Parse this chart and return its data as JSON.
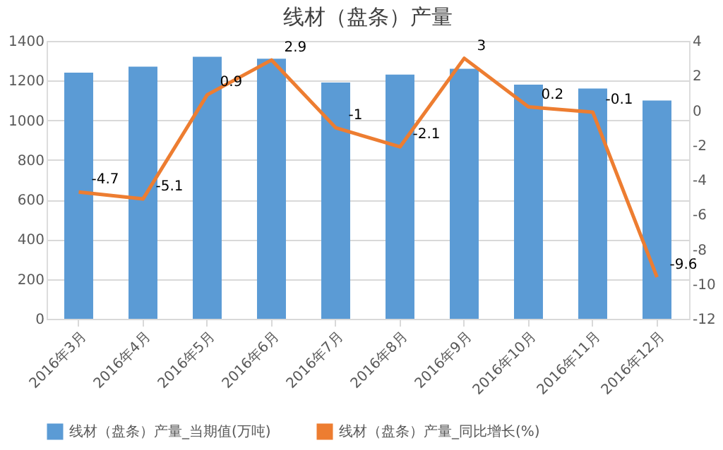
{
  "chart_data": {
    "type": "bar",
    "title": "线材（盘条）产量",
    "categories": [
      "2016年3月",
      "2016年4月",
      "2016年5月",
      "2016年6月",
      "2016年7月",
      "2016年8月",
      "2016年9月",
      "2016年10月",
      "2016年11月",
      "2016年12月"
    ],
    "series": [
      {
        "name": "线材（盘条）产量_当期值(万吨)",
        "color": "#5b9bd5",
        "values": [
          1240,
          1270,
          1320,
          1310,
          1190,
          1230,
          1260,
          1180,
          1160,
          1100
        ]
      },
      {
        "name": "线材（盘条）产量_同比增长(%)",
        "color": "#ed7d31",
        "type": "line",
        "axis": "y2",
        "values": [
          -4.7,
          -5.1,
          0.9,
          2.9,
          -1,
          -2.1,
          3,
          0.2,
          -0.1,
          -9.6
        ],
        "value_labels": [
          "-4.7",
          "-5.1",
          "0.9",
          "2.9",
          "-1",
          "-2.1",
          "3",
          "0.2",
          "-0.1",
          "-9.6"
        ]
      }
    ],
    "ylim": [
      0,
      1400
    ],
    "yticks": [
      0,
      200,
      400,
      600,
      800,
      1000,
      1200,
      1400
    ],
    "y2lim": [
      -12,
      4
    ],
    "y2ticks": [
      -12,
      -10,
      -8,
      -6,
      -4,
      -2,
      0,
      2,
      4
    ],
    "grid": "y",
    "legend": "bottom",
    "marker": "none",
    "line_style": "solid"
  }
}
